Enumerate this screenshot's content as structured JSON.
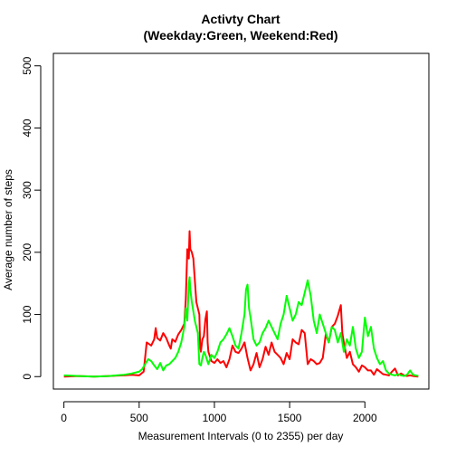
{
  "chart_data": {
    "type": "line",
    "title": "Activty Chart",
    "subtitle": "(Weekday:Green, Weekend:Red)",
    "xlabel": "Measurement Intervals (0 to 2355) per day",
    "ylabel": "Average number of steps",
    "xlim": [
      -70,
      2425
    ],
    "ylim": [
      -20,
      520
    ],
    "xticks": [
      0,
      500,
      1000,
      1500,
      2000
    ],
    "yticks": [
      0,
      100,
      200,
      300,
      400,
      500
    ],
    "grid": false,
    "series": [
      {
        "color": "#ff0000",
        "points": [
          [
            0,
            0
          ],
          [
            100,
            1
          ],
          [
            200,
            0
          ],
          [
            300,
            1
          ],
          [
            400,
            2
          ],
          [
            450,
            3
          ],
          [
            500,
            2
          ],
          [
            530,
            8
          ],
          [
            550,
            55
          ],
          [
            580,
            50
          ],
          [
            600,
            60
          ],
          [
            610,
            78
          ],
          [
            620,
            62
          ],
          [
            640,
            58
          ],
          [
            660,
            70
          ],
          [
            680,
            62
          ],
          [
            700,
            50
          ],
          [
            710,
            45
          ],
          [
            720,
            60
          ],
          [
            740,
            56
          ],
          [
            760,
            68
          ],
          [
            780,
            75
          ],
          [
            800,
            85
          ],
          [
            810,
            125
          ],
          [
            820,
            205
          ],
          [
            830,
            190
          ],
          [
            835,
            234
          ],
          [
            840,
            205
          ],
          [
            850,
            200
          ],
          [
            860,
            190
          ],
          [
            880,
            120
          ],
          [
            900,
            100
          ],
          [
            905,
            50
          ],
          [
            910,
            40
          ],
          [
            920,
            60
          ],
          [
            930,
            65
          ],
          [
            940,
            92
          ],
          [
            950,
            105
          ],
          [
            955,
            55
          ],
          [
            960,
            40
          ],
          [
            980,
            25
          ],
          [
            1000,
            22
          ],
          [
            1020,
            28
          ],
          [
            1040,
            22
          ],
          [
            1060,
            25
          ],
          [
            1080,
            15
          ],
          [
            1100,
            28
          ],
          [
            1120,
            50
          ],
          [
            1140,
            40
          ],
          [
            1160,
            38
          ],
          [
            1180,
            45
          ],
          [
            1200,
            55
          ],
          [
            1220,
            30
          ],
          [
            1240,
            10
          ],
          [
            1260,
            20
          ],
          [
            1280,
            38
          ],
          [
            1300,
            15
          ],
          [
            1320,
            28
          ],
          [
            1340,
            48
          ],
          [
            1360,
            35
          ],
          [
            1380,
            55
          ],
          [
            1400,
            40
          ],
          [
            1420,
            35
          ],
          [
            1440,
            30
          ],
          [
            1460,
            20
          ],
          [
            1480,
            38
          ],
          [
            1500,
            28
          ],
          [
            1520,
            60
          ],
          [
            1540,
            55
          ],
          [
            1560,
            52
          ],
          [
            1580,
            75
          ],
          [
            1600,
            70
          ],
          [
            1620,
            20
          ],
          [
            1640,
            28
          ],
          [
            1660,
            25
          ],
          [
            1680,
            20
          ],
          [
            1700,
            22
          ],
          [
            1720,
            30
          ],
          [
            1740,
            68
          ],
          [
            1760,
            55
          ],
          [
            1780,
            80
          ],
          [
            1800,
            85
          ],
          [
            1820,
            98
          ],
          [
            1840,
            115
          ],
          [
            1850,
            70
          ],
          [
            1860,
            55
          ],
          [
            1880,
            30
          ],
          [
            1900,
            40
          ],
          [
            1920,
            20
          ],
          [
            1940,
            15
          ],
          [
            1960,
            8
          ],
          [
            1980,
            18
          ],
          [
            2000,
            15
          ],
          [
            2020,
            10
          ],
          [
            2040,
            10
          ],
          [
            2060,
            3
          ],
          [
            2080,
            12
          ],
          [
            2100,
            8
          ],
          [
            2120,
            4
          ],
          [
            2140,
            3
          ],
          [
            2160,
            2
          ],
          [
            2180,
            8
          ],
          [
            2200,
            13
          ],
          [
            2220,
            2
          ],
          [
            2240,
            5
          ],
          [
            2260,
            2
          ],
          [
            2280,
            1
          ],
          [
            2300,
            2
          ],
          [
            2320,
            1
          ],
          [
            2355,
            0
          ]
        ]
      },
      {
        "color": "#00ff00",
        "points": [
          [
            0,
            2
          ],
          [
            100,
            1
          ],
          [
            200,
            0
          ],
          [
            300,
            1
          ],
          [
            400,
            3
          ],
          [
            450,
            5
          ],
          [
            500,
            8
          ],
          [
            520,
            12
          ],
          [
            540,
            20
          ],
          [
            560,
            28
          ],
          [
            580,
            25
          ],
          [
            600,
            18
          ],
          [
            620,
            12
          ],
          [
            640,
            22
          ],
          [
            660,
            10
          ],
          [
            680,
            18
          ],
          [
            700,
            20
          ],
          [
            720,
            25
          ],
          [
            740,
            30
          ],
          [
            760,
            40
          ],
          [
            780,
            55
          ],
          [
            800,
            80
          ],
          [
            810,
            110
          ],
          [
            820,
            90
          ],
          [
            830,
            150
          ],
          [
            835,
            160
          ],
          [
            840,
            140
          ],
          [
            850,
            120
          ],
          [
            860,
            105
          ],
          [
            870,
            90
          ],
          [
            880,
            80
          ],
          [
            890,
            70
          ],
          [
            900,
            20
          ],
          [
            910,
            18
          ],
          [
            920,
            30
          ],
          [
            930,
            40
          ],
          [
            940,
            35
          ],
          [
            960,
            20
          ],
          [
            980,
            35
          ],
          [
            1000,
            30
          ],
          [
            1020,
            40
          ],
          [
            1040,
            55
          ],
          [
            1060,
            60
          ],
          [
            1080,
            68
          ],
          [
            1100,
            78
          ],
          [
            1120,
            65
          ],
          [
            1140,
            50
          ],
          [
            1160,
            45
          ],
          [
            1180,
            70
          ],
          [
            1200,
            100
          ],
          [
            1210,
            140
          ],
          [
            1220,
            148
          ],
          [
            1230,
            110
          ],
          [
            1240,
            95
          ],
          [
            1260,
            60
          ],
          [
            1280,
            50
          ],
          [
            1300,
            55
          ],
          [
            1320,
            70
          ],
          [
            1340,
            78
          ],
          [
            1360,
            90
          ],
          [
            1380,
            80
          ],
          [
            1400,
            70
          ],
          [
            1420,
            60
          ],
          [
            1440,
            85
          ],
          [
            1460,
            100
          ],
          [
            1480,
            130
          ],
          [
            1500,
            110
          ],
          [
            1520,
            90
          ],
          [
            1540,
            100
          ],
          [
            1560,
            120
          ],
          [
            1580,
            115
          ],
          [
            1600,
            135
          ],
          [
            1620,
            155
          ],
          [
            1640,
            130
          ],
          [
            1660,
            90
          ],
          [
            1680,
            70
          ],
          [
            1700,
            100
          ],
          [
            1720,
            85
          ],
          [
            1740,
            70
          ],
          [
            1760,
            55
          ],
          [
            1780,
            80
          ],
          [
            1800,
            75
          ],
          [
            1820,
            55
          ],
          [
            1840,
            70
          ],
          [
            1860,
            40
          ],
          [
            1880,
            60
          ],
          [
            1900,
            50
          ],
          [
            1920,
            80
          ],
          [
            1940,
            45
          ],
          [
            1960,
            30
          ],
          [
            1980,
            40
          ],
          [
            2000,
            95
          ],
          [
            2020,
            65
          ],
          [
            2040,
            80
          ],
          [
            2060,
            45
          ],
          [
            2080,
            30
          ],
          [
            2100,
            20
          ],
          [
            2120,
            25
          ],
          [
            2140,
            10
          ],
          [
            2160,
            5
          ],
          [
            2180,
            3
          ],
          [
            2200,
            2
          ],
          [
            2220,
            4
          ],
          [
            2240,
            2
          ],
          [
            2260,
            1
          ],
          [
            2280,
            3
          ],
          [
            2300,
            10
          ],
          [
            2320,
            3
          ],
          [
            2355,
            1
          ]
        ]
      }
    ]
  }
}
